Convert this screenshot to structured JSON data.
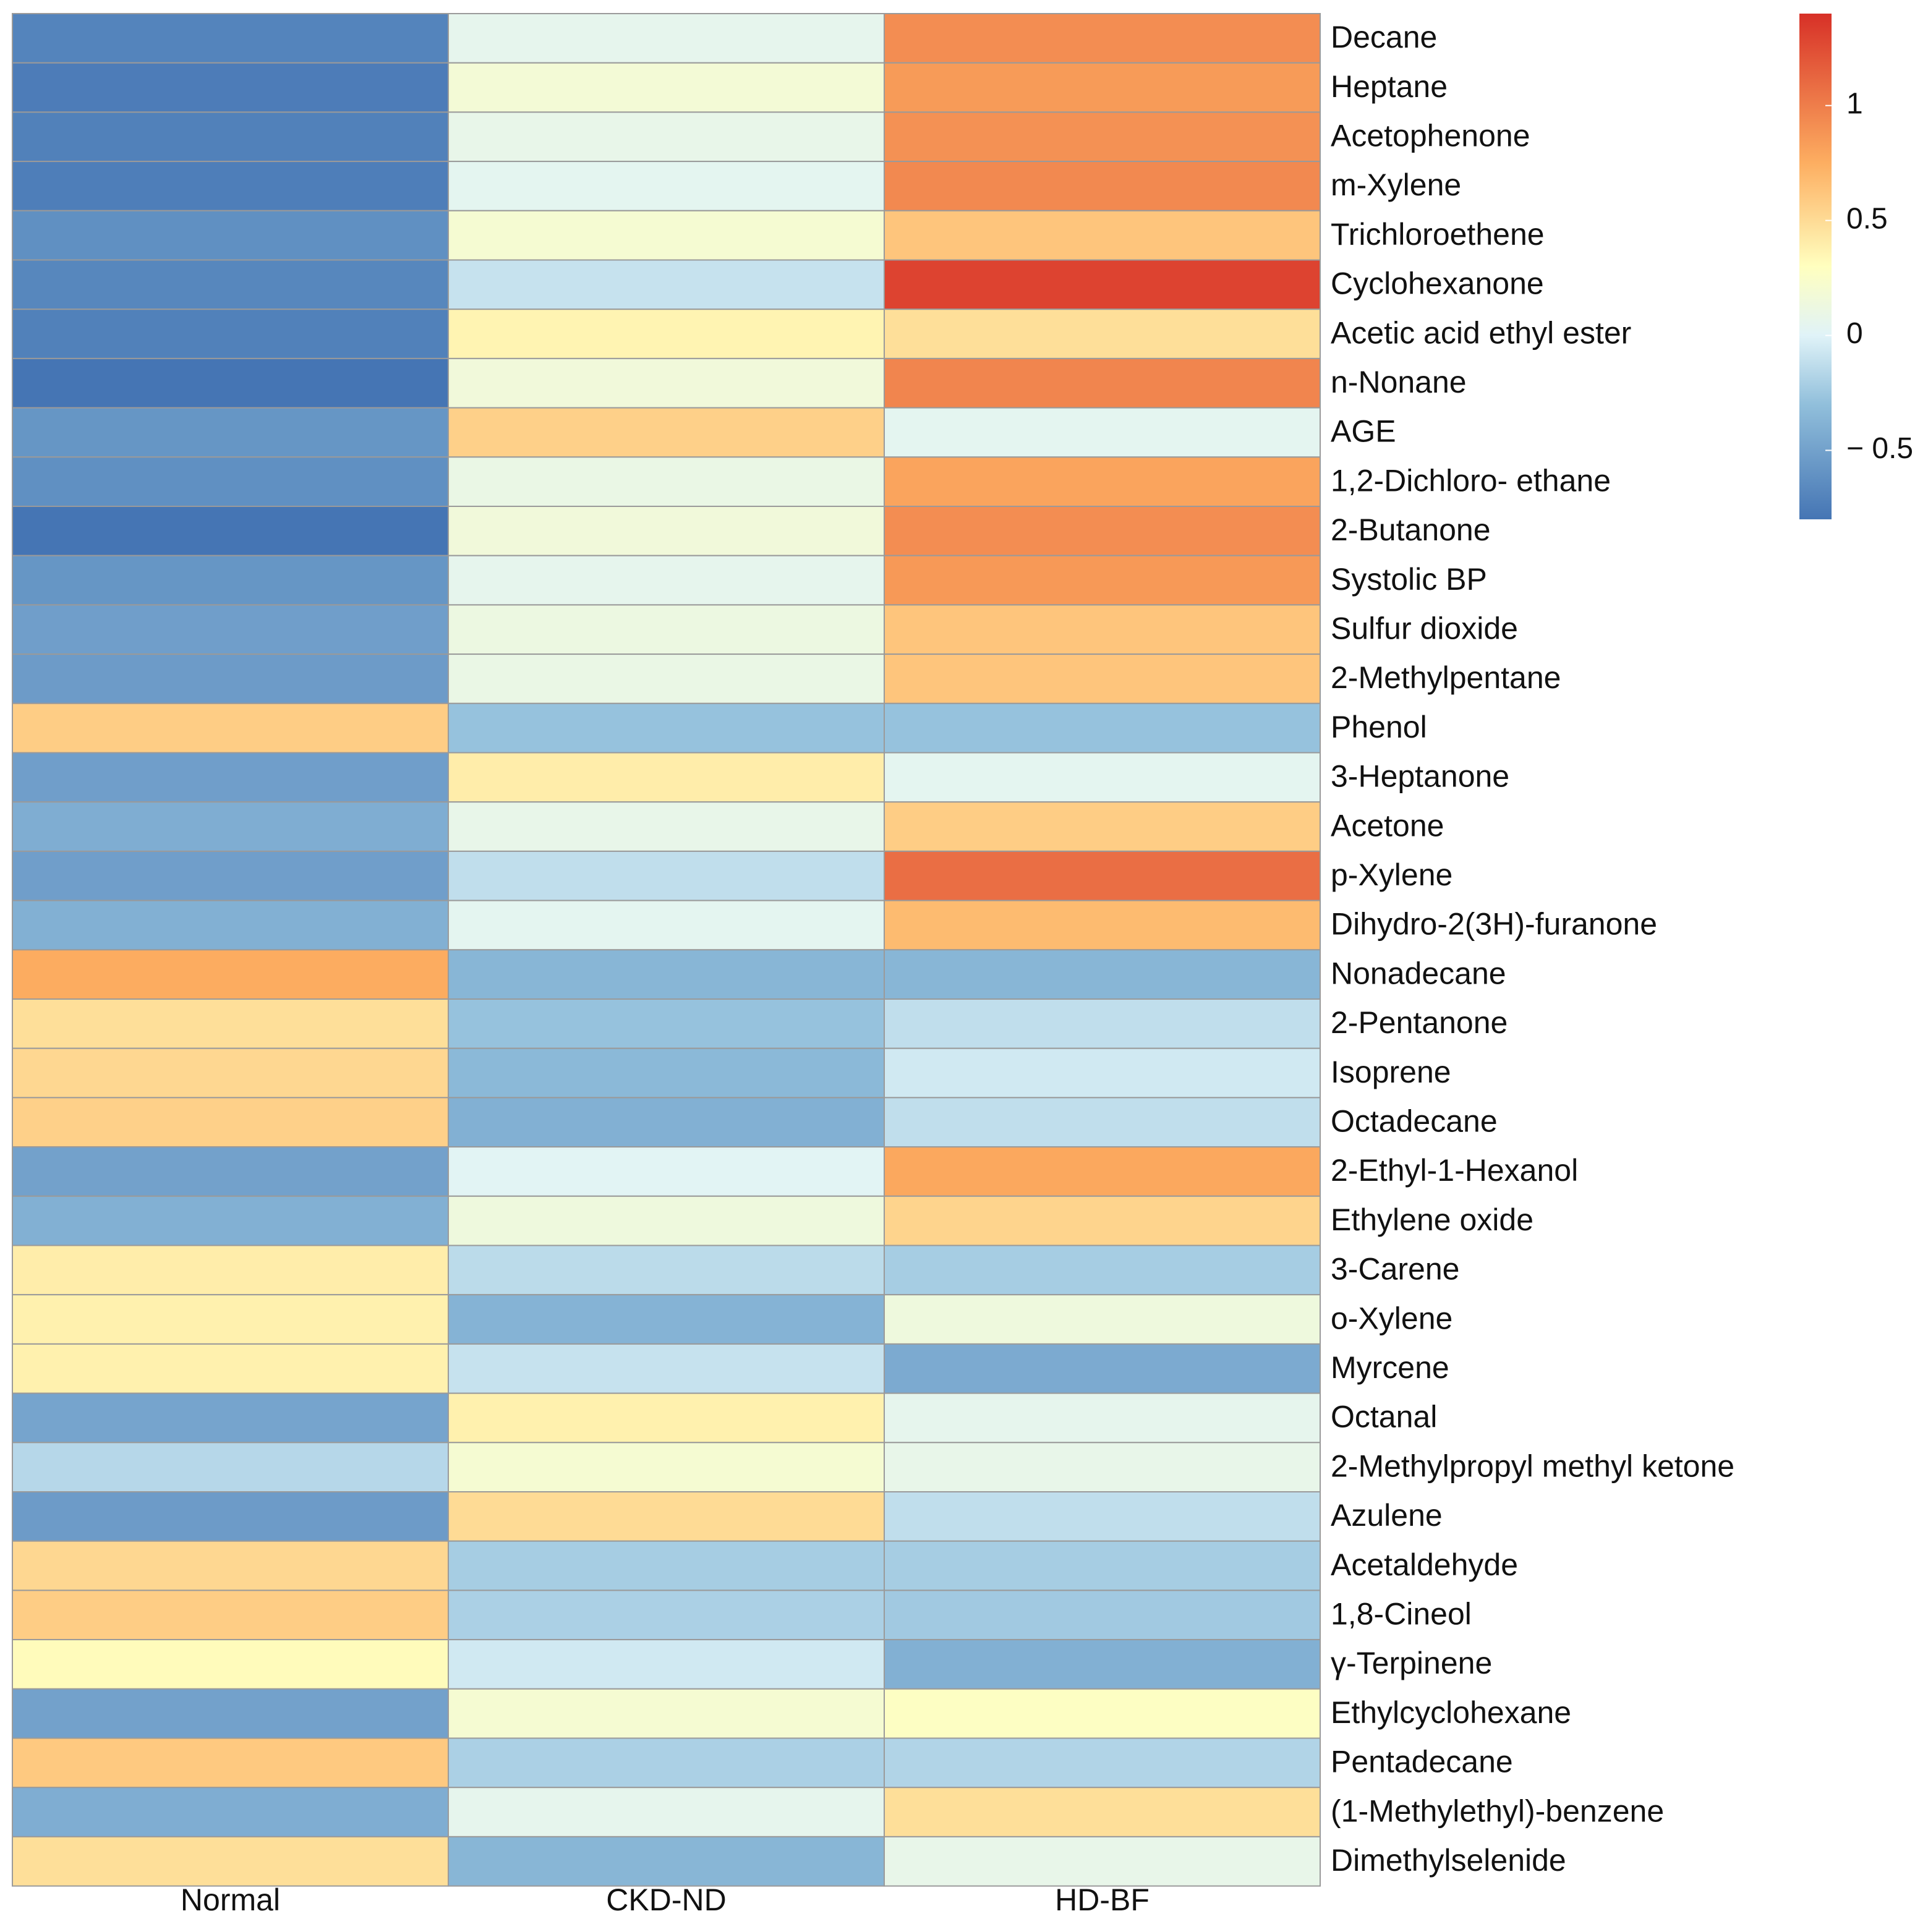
{
  "chart_data": {
    "type": "heatmap",
    "title": "",
    "columns": [
      "Normal",
      "CKD-ND",
      "HD-BF"
    ],
    "rows": [
      "Decane",
      "Heptane",
      "Acetophenone",
      "m-Xylene",
      "Trichloroethene",
      "Cyclohexanone",
      "Acetic acid ethyl ester",
      "n-Nonane",
      "AGE",
      "1,2-Dichloro- ethane",
      "2-Butanone",
      "Systolic BP",
      "Sulfur dioxide",
      "2-Methylpentane",
      "Phenol",
      "3-Heptanone",
      "Acetone",
      "p-Xylene",
      "Dihydro-2(3H)-furanone",
      "Nonadecane",
      "2-Pentanone",
      "Isoprene",
      "Octadecane",
      "2-Ethyl-1-Hexanol",
      "Ethylene oxide",
      "3-Carene",
      "o-Xylene",
      "Myrcene",
      "Octanal",
      "2-Methylpropyl methyl ketone",
      "Azulene",
      "Acetaldehyde",
      "1,8-Cineol",
      "γ-Terpinene",
      "Ethylcyclohexane",
      "Pentadecane",
      "(1-Methylethyl)-benzene",
      "Dimethylselenide"
    ],
    "values": [
      [
        -0.7,
        0.06,
        0.92
      ],
      [
        -0.75,
        0.18,
        0.85
      ],
      [
        -0.72,
        0.08,
        0.9
      ],
      [
        -0.74,
        0.04,
        0.94
      ],
      [
        -0.62,
        0.2,
        0.62
      ],
      [
        -0.68,
        -0.1,
        1.3
      ],
      [
        -0.72,
        0.36,
        0.48
      ],
      [
        -0.82,
        0.16,
        0.96
      ],
      [
        -0.58,
        0.56,
        0.04
      ],
      [
        -0.62,
        0.1,
        0.8
      ],
      [
        -0.82,
        0.16,
        0.92
      ],
      [
        -0.58,
        0.06,
        0.86
      ],
      [
        -0.52,
        0.12,
        0.62
      ],
      [
        -0.54,
        0.1,
        0.62
      ],
      [
        0.58,
        -0.28,
        -0.28
      ],
      [
        -0.52,
        0.4,
        0.04
      ],
      [
        -0.42,
        0.08,
        0.58
      ],
      [
        -0.52,
        -0.12,
        1.08
      ],
      [
        -0.4,
        0.04,
        0.68
      ],
      [
        0.76,
        -0.36,
        -0.36
      ],
      [
        0.48,
        -0.28,
        -0.12
      ],
      [
        0.52,
        -0.34,
        -0.06
      ],
      [
        0.56,
        -0.4,
        -0.12
      ],
      [
        -0.5,
        0.02,
        0.78
      ],
      [
        -0.4,
        0.14,
        0.54
      ],
      [
        0.4,
        -0.14,
        -0.22
      ],
      [
        0.38,
        -0.38,
        0.14
      ],
      [
        0.38,
        -0.1,
        -0.44
      ],
      [
        -0.48,
        0.38,
        0.06
      ],
      [
        -0.16,
        0.2,
        0.08
      ],
      [
        -0.54,
        0.5,
        -0.12
      ],
      [
        0.52,
        -0.22,
        -0.22
      ],
      [
        0.58,
        -0.2,
        -0.24
      ],
      [
        0.32,
        -0.06,
        -0.4
      ],
      [
        -0.5,
        0.2,
        0.28
      ],
      [
        0.6,
        -0.2,
        -0.18
      ],
      [
        -0.42,
        0.06,
        0.48
      ],
      [
        0.48,
        -0.36,
        0.08
      ]
    ],
    "color_scale": {
      "range": [
        -0.8,
        1.4
      ],
      "stops": [
        {
          "value": -0.8,
          "color": "#4575b4"
        },
        {
          "value": -0.3,
          "color": "#91bfdb"
        },
        {
          "value": 0.0,
          "color": "#e0f3f8"
        },
        {
          "value": 0.3,
          "color": "#ffffbf"
        },
        {
          "value": 0.75,
          "color": "#fdae61"
        },
        {
          "value": 1.4,
          "color": "#d73027"
        }
      ],
      "ticks": [
        {
          "value": -0.5,
          "label": "− 0.5"
        },
        {
          "value": 0,
          "label": "0"
        },
        {
          "value": 0.5,
          "label": "0.5"
        },
        {
          "value": 1,
          "label": "1"
        }
      ]
    },
    "legend_position": "top-right",
    "grid": true
  }
}
